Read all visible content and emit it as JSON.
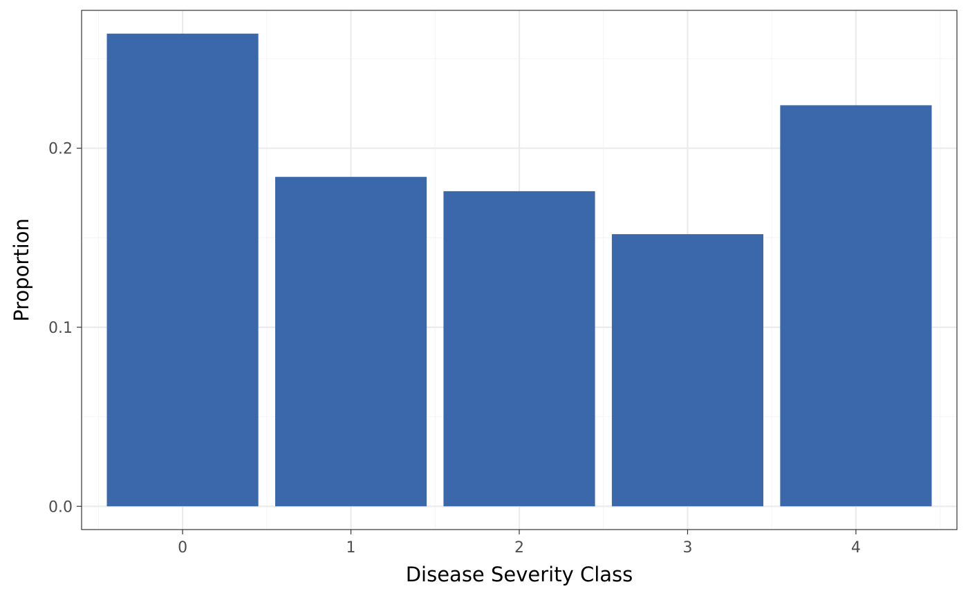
{
  "chart_data": {
    "type": "bar",
    "title": "",
    "xlabel": "Disease Severity Class",
    "ylabel": "Proportion",
    "categories": [
      "0",
      "1",
      "2",
      "3",
      "4"
    ],
    "values": [
      0.264,
      0.184,
      0.176,
      0.152,
      0.224
    ],
    "ylim": [
      -0.013,
      0.277
    ],
    "yticks": [
      {
        "value": 0.0,
        "label": "0.0"
      },
      {
        "value": 0.1,
        "label": "0.1"
      },
      {
        "value": 0.2,
        "label": "0.2"
      }
    ],
    "grid": true,
    "legend": "none",
    "colors": {
      "bar": "#3b68aa",
      "panel_border": "#333333",
      "grid_major": "#ebebeb",
      "grid_minor": "#f5f5f5",
      "tick_label": "#4d4d4d"
    }
  }
}
